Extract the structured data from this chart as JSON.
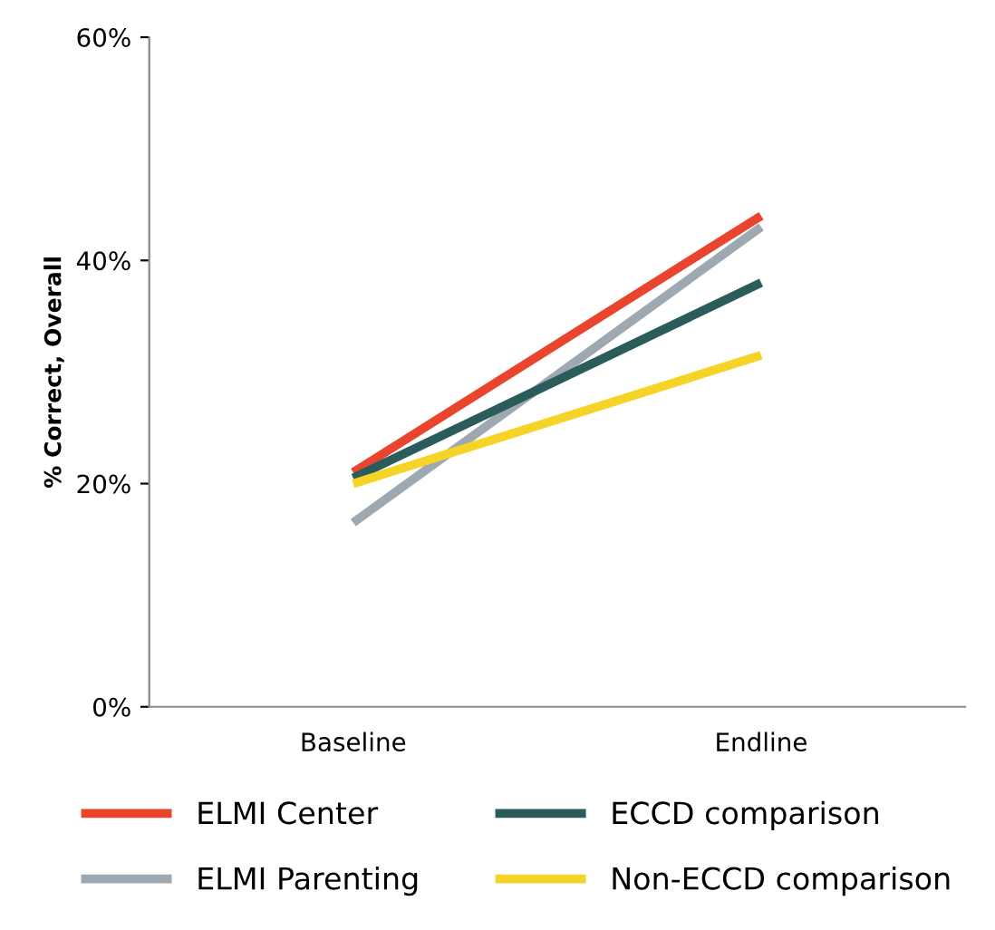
{
  "chart_data": {
    "type": "line",
    "ylabel": "% Correct, Overall",
    "categories": [
      "Baseline",
      "Endline"
    ],
    "series": [
      {
        "name": "ELMI Center",
        "color": "#e8442e",
        "values": [
          21,
          44
        ]
      },
      {
        "name": "ELMI Parenting",
        "color": "#9ea8b0",
        "values": [
          16.5,
          43
        ]
      },
      {
        "name": "ECCD comparison",
        "color": "#2b5c5c",
        "values": [
          20.5,
          38
        ]
      },
      {
        "name": "Non-ECCD comparison",
        "color": "#f5d327",
        "values": [
          20,
          31.5
        ]
      }
    ],
    "ylim": [
      0,
      60
    ],
    "yticks": [
      {
        "value": 0,
        "label": "0%"
      },
      {
        "value": 20,
        "label": "20%"
      },
      {
        "value": 40,
        "label": "40%"
      },
      {
        "value": 60,
        "label": "60%"
      }
    ],
    "grid": false,
    "legend": "bottom",
    "marker": "none",
    "line_style": "solid"
  }
}
